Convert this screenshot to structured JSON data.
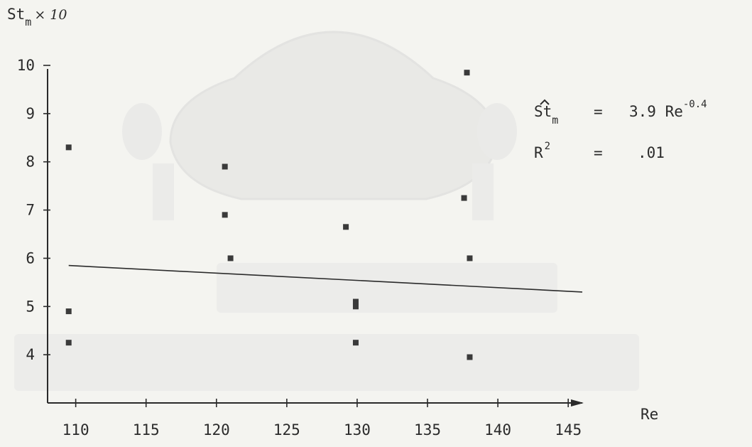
{
  "chart_data": {
    "type": "scatter",
    "xlabel": "Re",
    "ylabel": {
      "base": "St",
      "subscript": "m",
      "suffix": "× 10"
    },
    "xlim": [
      108,
      146
    ],
    "ylim": [
      3.0,
      10.0
    ],
    "x_ticks": [
      "110",
      "115",
      "120",
      "125",
      "130",
      "135",
      "140",
      "145"
    ],
    "y_ticks": [
      "10",
      "9",
      "8",
      "7",
      "6",
      "5",
      "4"
    ],
    "points": [
      {
        "x": 109.5,
        "y": 8.3
      },
      {
        "x": 109.5,
        "y": 4.9
      },
      {
        "x": 109.5,
        "y": 4.25
      },
      {
        "x": 120.6,
        "y": 7.9
      },
      {
        "x": 120.6,
        "y": 6.9
      },
      {
        "x": 121.0,
        "y": 6.0
      },
      {
        "x": 129.2,
        "y": 6.65
      },
      {
        "x": 129.9,
        "y": 5.1
      },
      {
        "x": 129.9,
        "y": 5.0
      },
      {
        "x": 129.9,
        "y": 4.25
      },
      {
        "x": 137.8,
        "y": 9.85
      },
      {
        "x": 137.6,
        "y": 7.25
      },
      {
        "x": 138.0,
        "y": 6.0
      },
      {
        "x": 138.0,
        "y": 3.95
      }
    ],
    "fit_line": {
      "x": [
        109.5,
        146.0
      ],
      "y": [
        5.85,
        5.3
      ]
    },
    "annotation": {
      "lhs": "St",
      "lhs_subscript": "m",
      "equals": "=",
      "rhs": "3.9 Re",
      "rhs_exponent": "-0.4",
      "r2_label": "R",
      "r2_exponent": "2",
      "r2_value": ".01"
    }
  }
}
